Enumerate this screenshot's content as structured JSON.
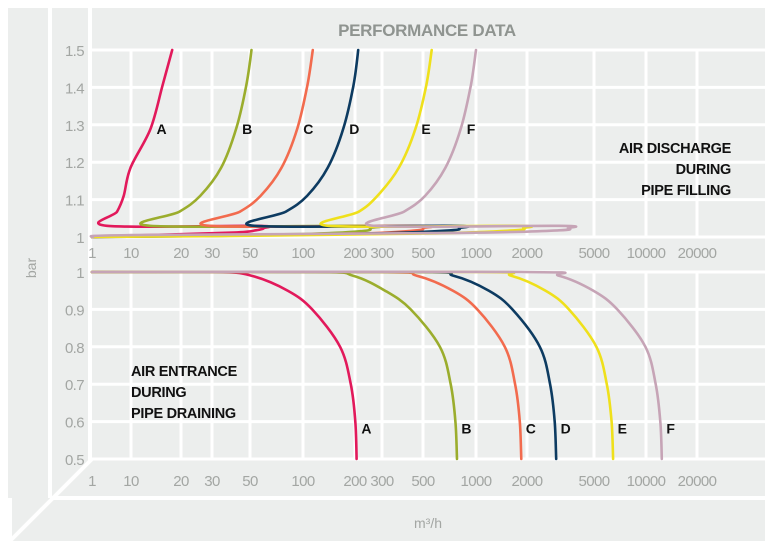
{
  "title": "PERFORMANCE DATA",
  "ylabel": "bar",
  "xlabel": "m³/h",
  "colors": {
    "A": "#e2195b",
    "B": "#9bad2d",
    "C": "#f26b4e",
    "D": "#0d3b61",
    "E": "#efe01b",
    "F": "#c6a4b6",
    "background": "#eceeed",
    "grid": "#ffffff",
    "tick_text": "#a3a6a3"
  },
  "chart_data": [
    {
      "type": "line",
      "annotation": [
        "AIR DISCHARGE",
        "DURING",
        "PIPE FILLING"
      ],
      "x_ticks": [
        1,
        10,
        20,
        30,
        50,
        100,
        200,
        300,
        500,
        1000,
        2000,
        5000,
        10000,
        20000
      ],
      "x_tick_labels": [
        "1",
        "10",
        "20",
        "30",
        "50",
        "100",
        "200",
        "300",
        "500",
        "1000",
        "2000",
        "5000",
        "10000",
        "20000"
      ],
      "y_ticks": [
        1,
        1.1,
        1.2,
        1.3,
        1.4,
        1.5
      ],
      "y_tick_labels": [
        "1",
        "1.1",
        "1.2",
        "1.3",
        "1.4",
        "1.5"
      ],
      "ylim": [
        1,
        1.5
      ],
      "grid": true,
      "series": [
        {
          "name": "A",
          "points": [
            [
              1,
              1.0
            ],
            [
              10,
              1.004
            ],
            [
              40,
              1.012
            ],
            [
              54,
              1.018
            ],
            [
              60,
              1.024
            ],
            [
              54,
              1.03
            ],
            [
              2.4,
              1.03
            ],
            [
              4.4,
              1.068
            ],
            [
              6.5,
              1.11
            ],
            [
              9.7,
              1.185
            ],
            [
              13.1,
              1.289
            ],
            [
              15.5,
              1.406
            ],
            [
              17.7,
              1.5
            ]
          ]
        },
        {
          "name": "B",
          "points": [
            [
              1,
              1.0
            ],
            [
              10,
              1.002
            ],
            [
              100,
              1.008
            ],
            [
              225,
              1.016
            ],
            [
              250,
              1.024
            ],
            [
              225,
              1.03
            ],
            [
              13,
              1.03
            ],
            [
              19.6,
              1.068
            ],
            [
              25.7,
              1.11
            ],
            [
              33.9,
              1.185
            ],
            [
              41.5,
              1.289
            ],
            [
              47.6,
              1.406
            ],
            [
              51,
              1.5
            ]
          ]
        },
        {
          "name": "C",
          "points": [
            [
              1,
              1.0
            ],
            [
              20,
              1.003
            ],
            [
              200,
              1.009
            ],
            [
              450,
              1.017
            ],
            [
              500,
              1.024
            ],
            [
              450,
              1.03
            ],
            [
              29,
              1.03
            ],
            [
              43.7,
              1.068
            ],
            [
              57.4,
              1.11
            ],
            [
              75.5,
              1.185
            ],
            [
              92.7,
              1.289
            ],
            [
              106,
              1.406
            ],
            [
              114,
              1.5
            ]
          ]
        },
        {
          "name": "D",
          "points": [
            [
              1,
              1.0
            ],
            [
              30,
              1.003
            ],
            [
              300,
              1.01
            ],
            [
              720,
              1.018
            ],
            [
              800,
              1.024
            ],
            [
              720,
              1.03
            ],
            [
              53,
              1.03
            ],
            [
              80,
              1.068
            ],
            [
              105.6,
              1.11
            ],
            [
              139,
              1.185
            ],
            [
              171,
              1.289
            ],
            [
              196,
              1.406
            ],
            [
              210,
              1.5
            ]
          ]
        },
        {
          "name": "E",
          "points": [
            [
              1,
              1.0
            ],
            [
              40,
              1.003
            ],
            [
              600,
              1.01
            ],
            [
              1700,
              1.018
            ],
            [
              1900,
              1.024
            ],
            [
              1700,
              1.03
            ],
            [
              140,
              1.03
            ],
            [
              212,
              1.068
            ],
            [
              280,
              1.11
            ],
            [
              370,
              1.185
            ],
            [
              455,
              1.289
            ],
            [
              522,
              1.406
            ],
            [
              560,
              1.5
            ]
          ]
        },
        {
          "name": "F",
          "points": [
            [
              1,
              1.0
            ],
            [
              10,
              1.005
            ],
            [
              800,
              1.011
            ],
            [
              3100,
              1.018
            ],
            [
              3500,
              1.024
            ],
            [
              3100,
              1.03
            ],
            [
              265,
              1.03
            ],
            [
              395,
              1.068
            ],
            [
              514,
              1.11
            ],
            [
              670,
              1.185
            ],
            [
              819,
              1.289
            ],
            [
              935,
              1.406
            ],
            [
              1000,
              1.5
            ]
          ]
        }
      ]
    },
    {
      "type": "line",
      "annotation": [
        "AIR ENTRANCE",
        "DURING",
        "PIPE DRAINING"
      ],
      "x_ticks": [
        1,
        10,
        20,
        30,
        50,
        100,
        200,
        300,
        500,
        1000,
        2000,
        5000,
        10000,
        20000
      ],
      "x_tick_labels": [
        "1",
        "10",
        "20",
        "30",
        "50",
        "100",
        "200",
        "300",
        "500",
        "1000",
        "2000",
        "5000",
        "10000",
        "20000"
      ],
      "y_ticks": [
        0.5,
        0.6,
        0.7,
        0.8,
        0.9,
        1
      ],
      "y_tick_labels": [
        "0.5",
        "0.6",
        "0.7",
        "0.8",
        "0.9",
        "1"
      ],
      "ylim": [
        0.5,
        1
      ],
      "grid": true,
      "series": [
        {
          "name": "A",
          "points": [
            [
              1,
              1
            ],
            [
              31,
              1
            ],
            [
              51,
              0.99
            ],
            [
              82,
              0.95
            ],
            [
              113,
              0.9
            ],
            [
              164,
              0.8
            ],
            [
              189,
              0.7
            ],
            [
              201,
              0.6
            ],
            [
              205,
              0.5
            ]
          ]
        },
        {
          "name": "B",
          "points": [
            [
              1,
              1
            ],
            [
              117,
              1
            ],
            [
              195,
              0.99
            ],
            [
              312,
              0.95
            ],
            [
              429,
              0.9
            ],
            [
              624,
              0.8
            ],
            [
              718,
              0.7
            ],
            [
              764,
              0.6
            ],
            [
              780,
              0.5
            ]
          ]
        },
        {
          "name": "C",
          "points": [
            [
              1,
              1
            ],
            [
              278,
              1
            ],
            [
              463,
              0.99
            ],
            [
              740,
              0.95
            ],
            [
              1018,
              0.9
            ],
            [
              1480,
              0.8
            ],
            [
              1702,
              0.7
            ],
            [
              1813,
              0.6
            ],
            [
              1850,
              0.5
            ]
          ]
        },
        {
          "name": "D",
          "points": [
            [
              1,
              1
            ],
            [
              447,
              1
            ],
            [
              745,
              0.99
            ],
            [
              1192,
              0.95
            ],
            [
              1639,
              0.9
            ],
            [
              2384,
              0.8
            ],
            [
              2742,
              0.7
            ],
            [
              2920,
              0.6
            ],
            [
              2980,
              0.5
            ]
          ]
        },
        {
          "name": "E",
          "points": [
            [
              1,
              1
            ],
            [
              968,
              1
            ],
            [
              1613,
              0.99
            ],
            [
              2580,
              0.95
            ],
            [
              3548,
              0.9
            ],
            [
              5160,
              0.8
            ],
            [
              5934,
              0.7
            ],
            [
              6321,
              0.6
            ],
            [
              6450,
              0.5
            ]
          ]
        },
        {
          "name": "F",
          "points": [
            [
              1,
              1
            ],
            [
              1860,
              1
            ],
            [
              3100,
              0.99
            ],
            [
              4960,
              0.95
            ],
            [
              6820,
              0.9
            ],
            [
              9920,
              0.8
            ],
            [
              11408,
              0.7
            ],
            [
              12152,
              0.6
            ],
            [
              12400,
              0.5
            ]
          ]
        }
      ]
    }
  ]
}
